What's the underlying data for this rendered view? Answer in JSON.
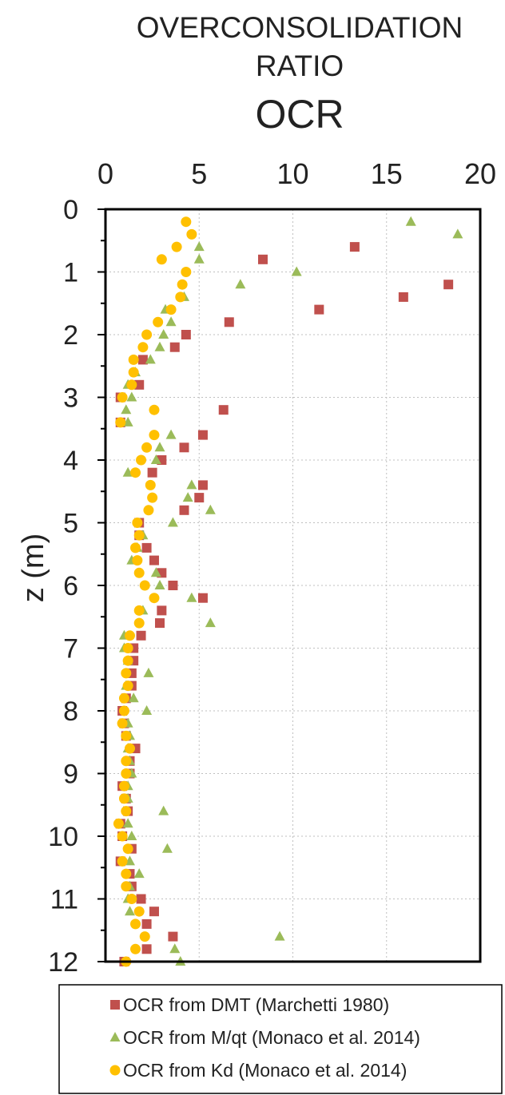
{
  "chart_data": {
    "type": "scatter",
    "title_lines": [
      "OVERCONSOLIDATION",
      "RATIO",
      "OCR"
    ],
    "xlabel": "",
    "ylabel": "z (m)",
    "xlim": [
      0,
      20
    ],
    "ylim": [
      0,
      12
    ],
    "x_axis_position": "top",
    "y_inverted": true,
    "x_ticks": [
      0,
      5,
      10,
      15,
      20
    ],
    "y_ticks": [
      0,
      1,
      2,
      3,
      4,
      5,
      6,
      7,
      8,
      9,
      10,
      11,
      12
    ],
    "grid": "horizontal dotted",
    "legend_position": "bottom",
    "series": [
      {
        "name": "OCR from DMT (Marchetti 1980)",
        "marker": "square",
        "color": "#C0504D",
        "points": [
          [
            13.3,
            0.6
          ],
          [
            8.4,
            0.8
          ],
          [
            18.3,
            1.2
          ],
          [
            15.9,
            1.4
          ],
          [
            11.4,
            1.6
          ],
          [
            6.6,
            1.8
          ],
          [
            4.3,
            2.0
          ],
          [
            3.7,
            2.2
          ],
          [
            2.0,
            2.4
          ],
          [
            1.8,
            2.8
          ],
          [
            0.8,
            3.0
          ],
          [
            6.3,
            3.2
          ],
          [
            0.8,
            3.4
          ],
          [
            5.2,
            3.6
          ],
          [
            4.2,
            3.8
          ],
          [
            3.0,
            4.0
          ],
          [
            2.5,
            4.2
          ],
          [
            5.2,
            4.4
          ],
          [
            5.0,
            4.6
          ],
          [
            4.2,
            4.8
          ],
          [
            1.8,
            5.0
          ],
          [
            1.8,
            5.2
          ],
          [
            2.2,
            5.4
          ],
          [
            2.6,
            5.6
          ],
          [
            3.0,
            5.8
          ],
          [
            3.6,
            6.0
          ],
          [
            5.2,
            6.2
          ],
          [
            3.0,
            6.4
          ],
          [
            2.9,
            6.6
          ],
          [
            1.9,
            6.8
          ],
          [
            1.5,
            7.0
          ],
          [
            1.5,
            7.2
          ],
          [
            1.4,
            7.4
          ],
          [
            1.4,
            7.6
          ],
          [
            1.1,
            7.8
          ],
          [
            0.9,
            8.0
          ],
          [
            1.0,
            8.2
          ],
          [
            1.1,
            8.4
          ],
          [
            1.6,
            8.6
          ],
          [
            1.3,
            8.8
          ],
          [
            1.3,
            9.0
          ],
          [
            0.9,
            9.2
          ],
          [
            1.1,
            9.4
          ],
          [
            1.2,
            9.6
          ],
          [
            0.8,
            9.8
          ],
          [
            0.9,
            10.0
          ],
          [
            1.4,
            10.2
          ],
          [
            0.8,
            10.4
          ],
          [
            1.3,
            10.6
          ],
          [
            1.4,
            10.8
          ],
          [
            1.9,
            11.0
          ],
          [
            2.6,
            11.2
          ],
          [
            2.2,
            11.4
          ],
          [
            3.6,
            11.6
          ],
          [
            2.2,
            11.8
          ],
          [
            1.0,
            12.0
          ]
        ]
      },
      {
        "name": "OCR from M/qt (Monaco et al. 2014)",
        "marker": "triangle",
        "color": "#9BBB59",
        "points": [
          [
            16.3,
            0.2
          ],
          [
            18.8,
            0.4
          ],
          [
            5.0,
            0.6
          ],
          [
            5.0,
            0.8
          ],
          [
            10.2,
            1.0
          ],
          [
            7.2,
            1.2
          ],
          [
            4.2,
            1.4
          ],
          [
            3.2,
            1.6
          ],
          [
            3.5,
            1.8
          ],
          [
            3.1,
            2.0
          ],
          [
            2.9,
            2.2
          ],
          [
            2.4,
            2.4
          ],
          [
            1.6,
            2.6
          ],
          [
            1.2,
            2.8
          ],
          [
            1.4,
            3.0
          ],
          [
            1.1,
            3.2
          ],
          [
            1.2,
            3.4
          ],
          [
            3.5,
            3.6
          ],
          [
            2.9,
            3.8
          ],
          [
            2.7,
            4.0
          ],
          [
            1.2,
            4.2
          ],
          [
            4.6,
            4.4
          ],
          [
            4.4,
            4.6
          ],
          [
            5.6,
            4.8
          ],
          [
            3.6,
            5.0
          ],
          [
            2.0,
            5.2
          ],
          [
            1.7,
            5.4
          ],
          [
            1.4,
            5.6
          ],
          [
            2.7,
            5.8
          ],
          [
            2.9,
            6.0
          ],
          [
            4.6,
            6.2
          ],
          [
            2.0,
            6.4
          ],
          [
            5.6,
            6.6
          ],
          [
            1.0,
            6.8
          ],
          [
            1.0,
            7.0
          ],
          [
            1.2,
            7.2
          ],
          [
            2.3,
            7.4
          ],
          [
            1.1,
            7.6
          ],
          [
            1.5,
            7.8
          ],
          [
            2.2,
            8.0
          ],
          [
            1.2,
            8.2
          ],
          [
            1.3,
            8.4
          ],
          [
            1.2,
            8.6
          ],
          [
            1.3,
            8.8
          ],
          [
            1.4,
            9.0
          ],
          [
            1.2,
            9.2
          ],
          [
            1.2,
            9.4
          ],
          [
            3.1,
            9.6
          ],
          [
            1.2,
            9.8
          ],
          [
            1.4,
            10.0
          ],
          [
            3.3,
            10.2
          ],
          [
            1.3,
            10.4
          ],
          [
            1.8,
            10.6
          ],
          [
            1.3,
            10.8
          ],
          [
            1.2,
            11.0
          ],
          [
            1.3,
            11.2
          ],
          [
            9.3,
            11.6
          ],
          [
            3.7,
            11.8
          ],
          [
            4.0,
            12.0
          ]
        ]
      },
      {
        "name": "OCR from Kd (Monaco et al. 2014)",
        "marker": "circle",
        "color": "#FFC000",
        "points": [
          [
            4.3,
            0.2
          ],
          [
            4.6,
            0.4
          ],
          [
            3.8,
            0.6
          ],
          [
            3.0,
            0.8
          ],
          [
            4.3,
            1.0
          ],
          [
            4.1,
            1.2
          ],
          [
            4.0,
            1.4
          ],
          [
            3.5,
            1.6
          ],
          [
            2.8,
            1.8
          ],
          [
            2.2,
            2.0
          ],
          [
            2.0,
            2.2
          ],
          [
            1.5,
            2.4
          ],
          [
            1.5,
            2.6
          ],
          [
            1.4,
            2.8
          ],
          [
            0.9,
            3.0
          ],
          [
            2.6,
            3.2
          ],
          [
            0.8,
            3.4
          ],
          [
            2.6,
            3.6
          ],
          [
            2.2,
            3.8
          ],
          [
            1.9,
            4.0
          ],
          [
            1.6,
            4.2
          ],
          [
            2.4,
            4.4
          ],
          [
            2.5,
            4.6
          ],
          [
            2.3,
            4.8
          ],
          [
            1.7,
            5.0
          ],
          [
            1.8,
            5.2
          ],
          [
            1.6,
            5.4
          ],
          [
            1.7,
            5.6
          ],
          [
            1.8,
            5.8
          ],
          [
            2.1,
            6.0
          ],
          [
            2.6,
            6.2
          ],
          [
            1.8,
            6.4
          ],
          [
            1.8,
            6.6
          ],
          [
            1.3,
            6.8
          ],
          [
            1.2,
            7.0
          ],
          [
            1.2,
            7.2
          ],
          [
            1.1,
            7.4
          ],
          [
            1.2,
            7.6
          ],
          [
            1.0,
            7.8
          ],
          [
            1.0,
            8.0
          ],
          [
            0.9,
            8.2
          ],
          [
            1.1,
            8.4
          ],
          [
            1.3,
            8.6
          ],
          [
            1.1,
            8.8
          ],
          [
            1.1,
            9.0
          ],
          [
            1.0,
            9.2
          ],
          [
            1.0,
            9.4
          ],
          [
            1.1,
            9.6
          ],
          [
            0.7,
            9.8
          ],
          [
            0.9,
            10.0
          ],
          [
            1.2,
            10.2
          ],
          [
            0.9,
            10.4
          ],
          [
            1.1,
            10.6
          ],
          [
            1.1,
            10.8
          ],
          [
            1.4,
            11.0
          ],
          [
            1.8,
            11.2
          ],
          [
            1.6,
            11.4
          ],
          [
            2.1,
            11.6
          ],
          [
            1.6,
            11.8
          ],
          [
            1.1,
            12.0
          ]
        ]
      }
    ]
  }
}
